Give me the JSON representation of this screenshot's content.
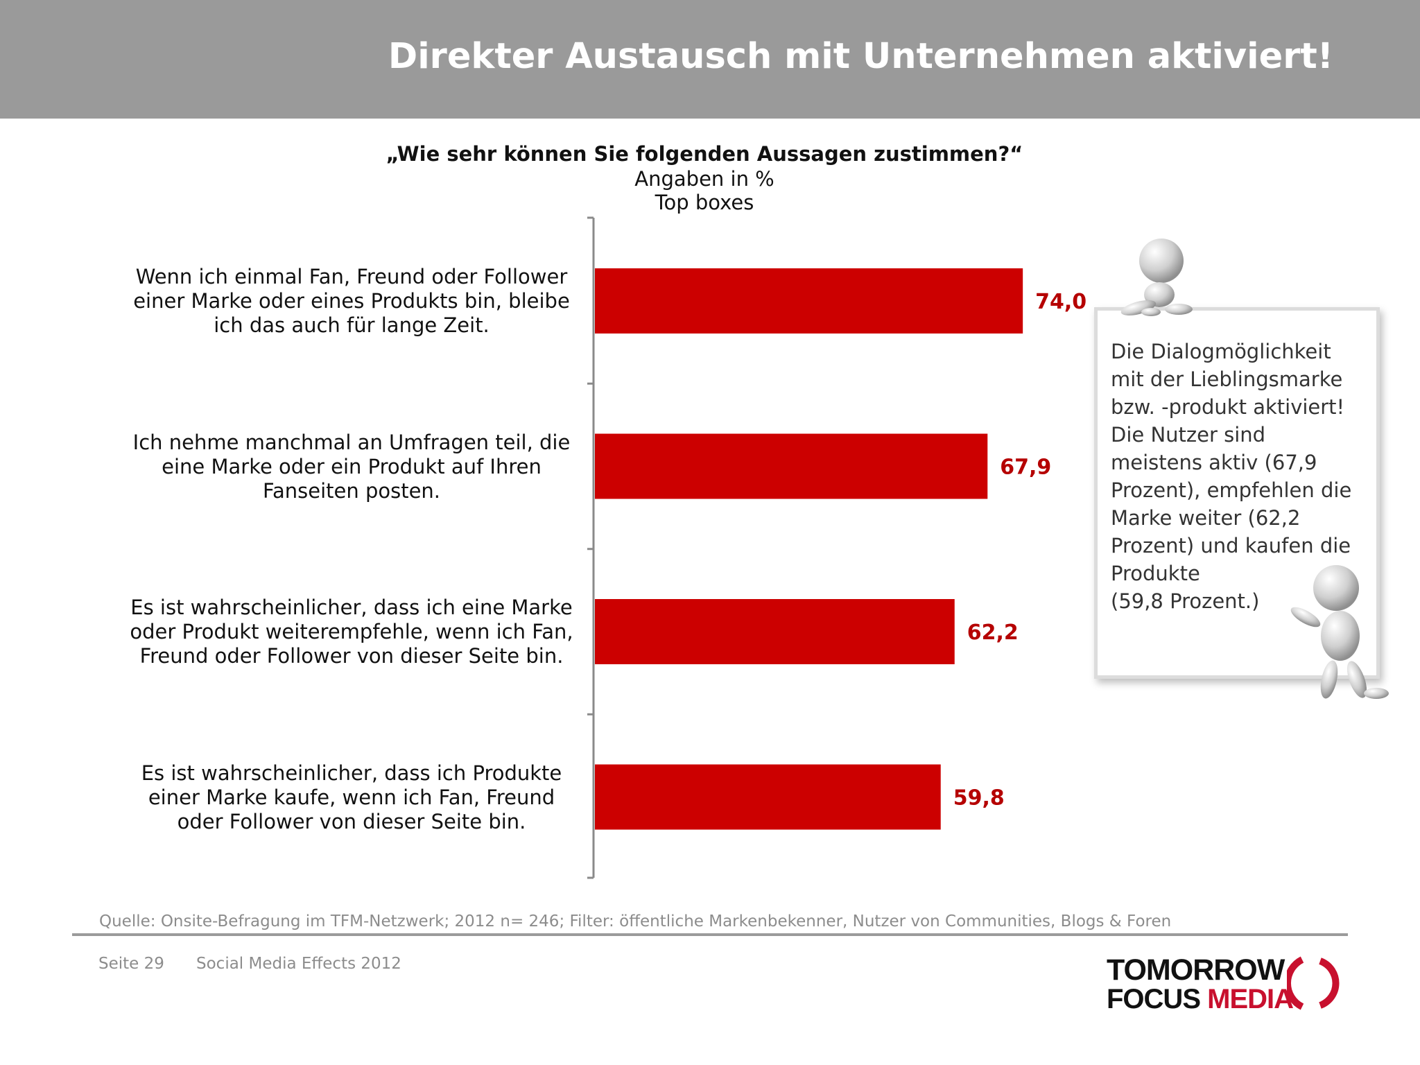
{
  "header": {
    "title": "Direkter Austausch mit Unternehmen aktiviert!"
  },
  "chart_data": {
    "type": "bar",
    "orientation": "horizontal",
    "title": "„Wie sehr können Sie folgenden Aussagen zustimmen?“",
    "subtitle": [
      "Angaben in %",
      "Top boxes"
    ],
    "xlim": [
      0,
      100
    ],
    "categories": [
      [
        "Wenn ich einmal Fan, Freund oder Follower",
        "einer Marke oder eines Produkts bin, bleibe",
        "ich das auch für lange Zeit."
      ],
      [
        "Ich nehme manchmal an Umfragen teil, die",
        "eine Marke oder ein Produkt auf Ihren",
        "Fanseiten posten."
      ],
      [
        "Es ist wahrscheinlicher, dass ich eine Marke",
        "oder Produkt weiterempfehle, wenn ich Fan,",
        "Freund oder Follower von dieser Seite bin."
      ],
      [
        "Es ist wahrscheinlicher, dass ich Produkte",
        "einer Marke kaufe, wenn ich Fan, Freund",
        "oder Follower von dieser Seite bin."
      ]
    ],
    "values": [
      74.0,
      67.9,
      62.2,
      59.8
    ],
    "value_labels": [
      "74,0",
      "67,9",
      "62,2",
      "59,8"
    ],
    "bar_color": "#cc0000",
    "label_color": "#b50000",
    "grid": false,
    "legend": "none"
  },
  "info_box": {
    "lines": [
      "Die Dialogmöglichkeit",
      "mit der Lieblingsmarke",
      "bzw. -produkt aktiviert!",
      "Die Nutzer sind",
      "meistens aktiv (67,9",
      "Prozent), empfehlen die",
      "Marke weiter (62,2",
      "Prozent) und kaufen die",
      "Produkte",
      "(59,8 Prozent.)"
    ]
  },
  "source": "Quelle: Onsite-Befragung im TFM-Netzwerk; 2012 n= 246; Filter: öffentliche Markenbekenner, Nutzer von Communities, Blogs & Foren",
  "footer": {
    "page": "Seite 29",
    "title": "Social Media Effects 2012"
  },
  "logo": {
    "line1": "TOMORROW",
    "line2a": "FOCUS ",
    "line2b": "MEDIA"
  },
  "colors": {
    "header_bg": "#9a9a9a",
    "accent": "#cc0000",
    "logo_red": "#c8102e"
  },
  "icons": [
    "3d-figure-icon",
    "3d-figure-icon"
  ]
}
